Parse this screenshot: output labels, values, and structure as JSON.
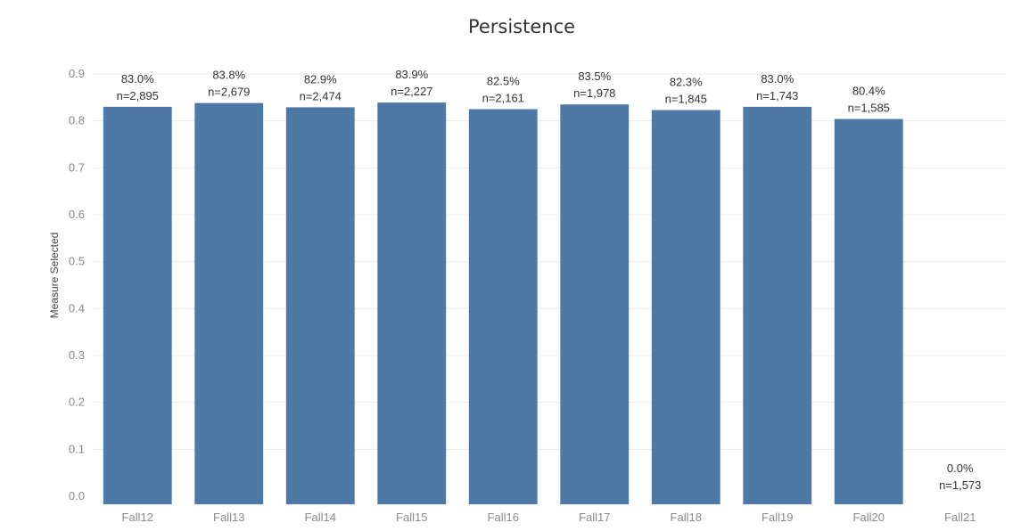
{
  "chart_data": {
    "type": "bar",
    "title": "Persistence",
    "xlabel": "",
    "ylabel": "Measure Selected",
    "ylim": [
      0,
      0.9
    ],
    "yticks": [
      "0.0",
      "0.1",
      "0.2",
      "0.3",
      "0.4",
      "0.5",
      "0.6",
      "0.7",
      "0.8",
      "0.9"
    ],
    "grid": true,
    "color": "#4e79a7",
    "categories": [
      "Fall12",
      "Fall13",
      "Fall14",
      "Fall15",
      "Fall16",
      "Fall17",
      "Fall18",
      "Fall19",
      "Fall20",
      "Fall21"
    ],
    "values": [
      0.83,
      0.838,
      0.829,
      0.839,
      0.825,
      0.835,
      0.823,
      0.83,
      0.804,
      0.0
    ],
    "percent_labels": [
      "83.0%",
      "83.8%",
      "82.9%",
      "83.9%",
      "82.5%",
      "83.5%",
      "82.3%",
      "83.0%",
      "80.4%",
      "0.0%"
    ],
    "n_labels": [
      "n=2,895",
      "n=2,679",
      "n=2,474",
      "n=2,227",
      "n=2,161",
      "n=1,978",
      "n=1,845",
      "n=1,743",
      "n=1,585",
      "n=1,573"
    ]
  }
}
